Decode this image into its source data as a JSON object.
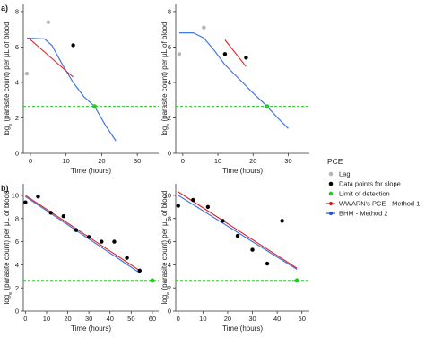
{
  "chart_data": [
    {
      "panel": "a)",
      "type": "line",
      "xlabel": "Time (hours)",
      "ylabel": "log",
      "ylabel_sub": "e",
      "ylabel_rest": " (parasite count) per µL of blood",
      "xlim": [
        -2,
        36
      ],
      "ylim": [
        0,
        8.4
      ],
      "xticks": [
        0,
        10,
        20,
        30
      ],
      "yticks": [
        0,
        2,
        4,
        6,
        8
      ],
      "lag": [
        [
          -1,
          4.5
        ],
        [
          5,
          7.4
        ]
      ],
      "slope_points": [
        [
          12,
          6.1
        ]
      ],
      "lod_point": [
        18,
        2.65
      ],
      "lod": 2.65,
      "pce": [
        [
          -0.5,
          6.5
        ],
        [
          12,
          4.3
        ]
      ],
      "bhm": [
        [
          -1,
          6.5
        ],
        [
          4,
          6.45
        ],
        [
          6,
          6.1
        ],
        [
          9,
          5.0
        ],
        [
          12,
          4.0
        ],
        [
          15,
          3.2
        ],
        [
          18,
          2.65
        ],
        [
          21,
          1.6
        ],
        [
          24,
          0.7
        ]
      ]
    },
    {
      "panel": "",
      "type": "line",
      "xlabel": "Time (hours)",
      "ylabel": "log",
      "ylabel_sub": "e",
      "ylabel_rest": " (parasite count) per µL of blood",
      "xlim": [
        -2,
        36
      ],
      "ylim": [
        0,
        8.4
      ],
      "xticks": [
        0,
        10,
        20,
        30
      ],
      "yticks": [
        0,
        2,
        4,
        6,
        8
      ],
      "lag": [
        [
          -1,
          5.6
        ],
        [
          6,
          7.1
        ]
      ],
      "slope_points": [
        [
          12,
          5.6
        ],
        [
          18,
          5.4
        ]
      ],
      "lod_point": [
        24,
        2.65
      ],
      "lod": 2.65,
      "pce": [
        [
          12,
          6.4
        ],
        [
          18,
          4.9
        ]
      ],
      "bhm": [
        [
          -1,
          6.8
        ],
        [
          3,
          6.8
        ],
        [
          6,
          6.5
        ],
        [
          9,
          5.8
        ],
        [
          12,
          5.0
        ],
        [
          16,
          4.2
        ],
        [
          20,
          3.4
        ],
        [
          24,
          2.65
        ],
        [
          27,
          2.0
        ],
        [
          30,
          1.4
        ]
      ]
    },
    {
      "panel": "b)",
      "type": "line",
      "xlabel": "Time (hours)",
      "ylabel": "log",
      "ylabel_sub": "e",
      "ylabel_rest": " (parasite count) per µL of blood",
      "xlim": [
        -1,
        63
      ],
      "ylim": [
        0,
        11
      ],
      "xticks": [
        0,
        10,
        20,
        30,
        40,
        50,
        60
      ],
      "yticks": [
        0,
        2,
        4,
        6,
        8,
        10
      ],
      "lag": [],
      "slope_points": [
        [
          0,
          9.4
        ],
        [
          6,
          9.9
        ],
        [
          12,
          8.5
        ],
        [
          18,
          8.2
        ],
        [
          24,
          7.0
        ],
        [
          30,
          6.4
        ],
        [
          36,
          6.0
        ],
        [
          42,
          6.0
        ],
        [
          48,
          4.6
        ],
        [
          54,
          3.5
        ]
      ],
      "lod_point": [
        60,
        2.65
      ],
      "lod": 2.65,
      "pce": [
        [
          0,
          10.0
        ],
        [
          54,
          3.5
        ]
      ],
      "bhm": [
        [
          0,
          9.9
        ],
        [
          54,
          3.3
        ]
      ]
    },
    {
      "panel": "",
      "type": "line",
      "xlabel": "Time (hours)",
      "ylabel": "log",
      "ylabel_sub": "e",
      "ylabel_rest": " (parasite count) per µL of blood",
      "xlim": [
        -1,
        53
      ],
      "ylim": [
        0,
        11
      ],
      "xticks": [
        0,
        10,
        20,
        30,
        40,
        50
      ],
      "yticks": [
        0,
        2,
        4,
        6,
        8,
        10
      ],
      "lag": [],
      "slope_points": [
        [
          0,
          9.1
        ],
        [
          6,
          9.6
        ],
        [
          12,
          9.0
        ],
        [
          18,
          7.8
        ],
        [
          24,
          6.5
        ],
        [
          30,
          5.3
        ],
        [
          36,
          4.1
        ],
        [
          42,
          7.8
        ]
      ],
      "lod_point": [
        48,
        2.65
      ],
      "lod": 2.65,
      "pce": [
        [
          0,
          10.3
        ],
        [
          48,
          3.7
        ]
      ],
      "bhm": [
        [
          0,
          10.0
        ],
        [
          48,
          3.6
        ]
      ]
    }
  ],
  "legend": {
    "title": "PCE",
    "items": [
      {
        "label": "Lag",
        "color": "#b5b5b5"
      },
      {
        "label": "Data points for slope",
        "color": "#000000"
      },
      {
        "label": "Limit of detection",
        "color": "#22cc22"
      },
      {
        "label": "WWARN's PCE - Method 1",
        "color": "#dd2222"
      },
      {
        "label": "BHM - Method 2",
        "color": "#2255dd"
      }
    ]
  },
  "colors": {
    "lag": "#b5b5b5",
    "slope": "#000000",
    "lod": "#22cc22",
    "pce": "#dd2222",
    "bhm": "#4477dd",
    "axis": "#333333"
  }
}
